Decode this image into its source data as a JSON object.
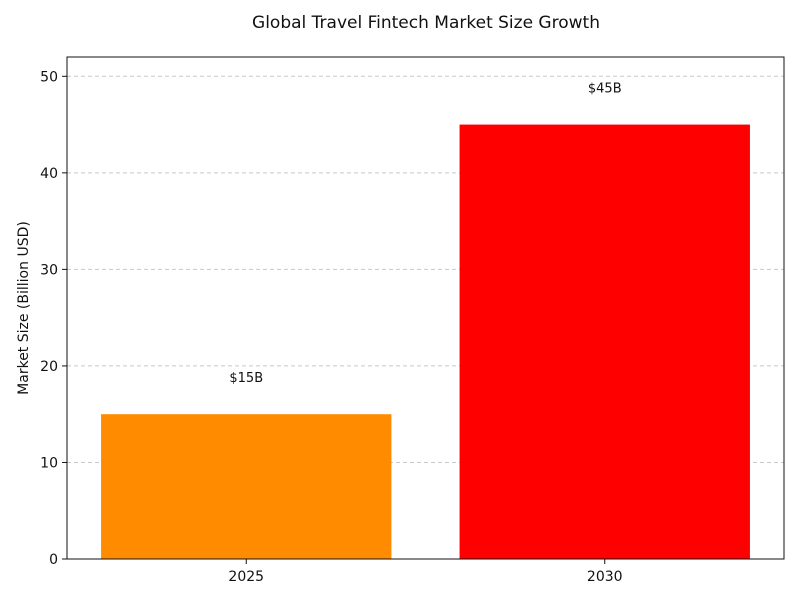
{
  "chart_data": {
    "type": "bar",
    "title": "Global Travel Fintech Market Size Growth",
    "xlabel": "",
    "ylabel": "Market Size (Billion USD)",
    "categories": [
      "2025",
      "2030"
    ],
    "values": [
      15,
      45
    ],
    "data_labels": [
      "$15B",
      "$45B"
    ],
    "colors": [
      "#ff8c00",
      "#ff0000"
    ],
    "ylim": [
      0,
      52
    ],
    "yticks": [
      0,
      10,
      20,
      30,
      40,
      50
    ],
    "grid": "y-dashed",
    "legend": "none"
  }
}
